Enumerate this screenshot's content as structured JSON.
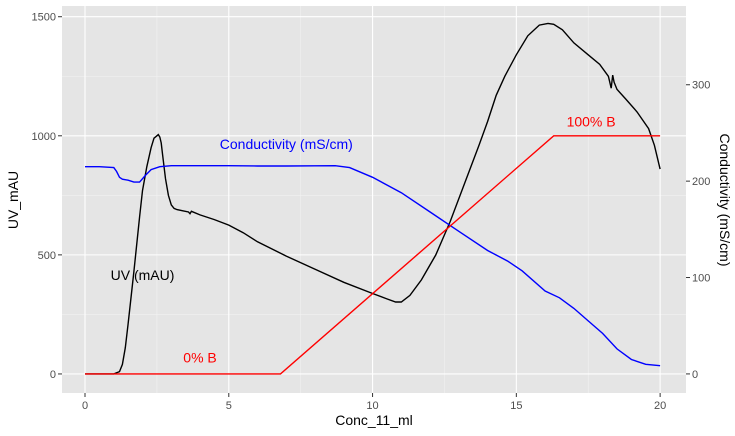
{
  "chart_data": {
    "type": "line",
    "xlabel": "Conc_11_ml",
    "ylabel": "UV_mAU",
    "y2label": "Conductivity (mS/cm)",
    "xlim": [
      -0.8,
      20.9
    ],
    "ylim": [
      -80,
      1545
    ],
    "y2lim": [
      -19.8,
      381.7
    ],
    "x_ticks": [
      0,
      5,
      10,
      15,
      20
    ],
    "y_ticks": [
      0,
      500,
      1000,
      1500
    ],
    "y2_ticks": [
      0,
      100,
      200,
      300
    ],
    "grid": true,
    "colors": {
      "uv": "#000000",
      "conductivity": "#0000ff",
      "gradient": "#ff0000",
      "panel": "#e5e5e5"
    },
    "annotations": [
      {
        "text": "UV (mAU)",
        "x": 2.0,
        "y": 395,
        "color": "#000000"
      },
      {
        "text": "Conductivity (mS/cm)",
        "x": 7.0,
        "y": 945,
        "color": "#0000ff"
      },
      {
        "text": "0% B",
        "x": 4.0,
        "y": 48,
        "color": "#ff0000"
      },
      {
        "text": "100% B",
        "x": 17.6,
        "y": 1040,
        "color": "#ff0000"
      }
    ],
    "series": [
      {
        "axis": "left",
        "x": [
          0,
          1.0,
          1.2,
          1.3,
          1.4,
          1.5,
          1.7,
          1.9,
          2.0,
          2.15,
          2.3,
          2.4,
          2.5,
          2.55,
          2.6,
          2.65,
          2.7,
          2.8,
          2.9,
          3.0,
          3.1,
          3.2,
          3.4,
          3.6,
          3.65,
          3.7,
          4.0,
          4.5,
          5.0,
          5.5,
          6.0,
          7.0,
          8.0,
          9.0,
          10.0,
          10.5,
          10.8,
          11.0,
          11.3,
          11.7,
          12.2,
          12.7,
          13.2,
          13.7,
          14.0,
          14.3,
          14.6,
          15.0,
          15.4,
          15.8,
          16.1,
          16.3,
          16.6,
          17.0,
          17.5,
          17.9,
          18.2,
          18.3,
          18.35,
          18.4,
          18.5,
          18.8,
          19.2,
          19.6,
          19.8,
          20.0
        ],
        "values": [
          0,
          0,
          10,
          40,
          110,
          210,
          430,
          660,
          770,
          870,
          950,
          990,
          1000,
          1005,
          995,
          970,
          920,
          820,
          750,
          710,
          695,
          690,
          685,
          680,
          673,
          683,
          668,
          648,
          625,
          593,
          555,
          495,
          440,
          385,
          338,
          315,
          302,
          302,
          330,
          395,
          500,
          640,
          800,
          960,
          1060,
          1170,
          1250,
          1340,
          1420,
          1465,
          1472,
          1468,
          1445,
          1390,
          1340,
          1300,
          1250,
          1200,
          1255,
          1225,
          1195,
          1155,
          1100,
          1030,
          960,
          860
        ]
      },
      {
        "axis": "right",
        "x": [
          0,
          0.5,
          1.0,
          1.1,
          1.2,
          1.3,
          1.5,
          1.7,
          1.9,
          2.1,
          2.3,
          2.6,
          3.0,
          4.0,
          5.0,
          6.0,
          7.0,
          8.0,
          8.7,
          9.2,
          10.0,
          11.0,
          12.0,
          13.0,
          14.0,
          14.7,
          15.2,
          16.0,
          16.5,
          17.0,
          17.5,
          18.0,
          18.5,
          19.0,
          19.5,
          20.0
        ],
        "values": [
          215,
          215,
          214,
          210,
          204,
          202,
          201,
          199,
          199,
          206,
          212,
          215,
          216,
          216,
          216,
          215.7,
          215.7,
          215.9,
          216,
          214,
          204,
          188,
          168,
          148,
          128,
          117,
          107,
          86,
          79,
          68,
          55,
          42,
          26,
          15,
          10,
          8.5
        ]
      },
      {
        "axis": "left",
        "x": [
          0,
          6.8,
          16.3,
          20.0
        ],
        "values": [
          0,
          0,
          1000,
          1000
        ]
      }
    ]
  }
}
